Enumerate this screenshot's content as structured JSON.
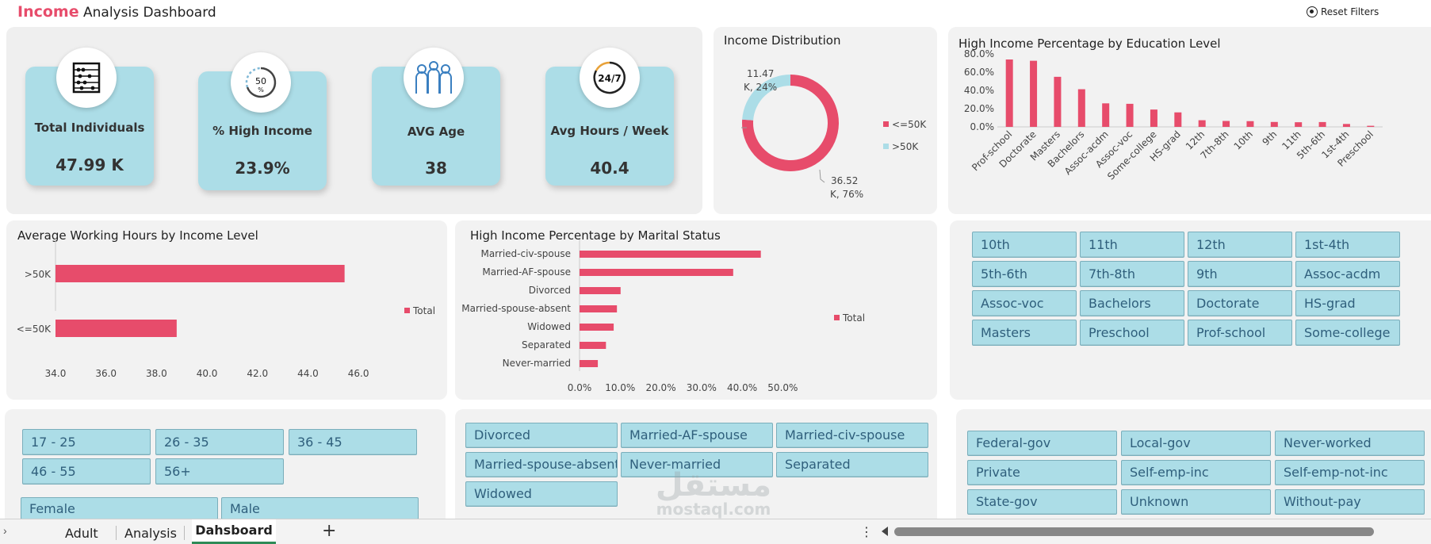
{
  "header": {
    "title_accent": "Income",
    "title_rest": " Analysis Dashboard",
    "reset_label": "Reset Filters",
    "accent_color": "#e74c6b"
  },
  "kpis": [
    {
      "label": "Total Individuals",
      "value": "47.99 K",
      "icon": "abacus-icon"
    },
    {
      "label": "% High Income",
      "value": "23.9%",
      "icon": "percent-gauge-icon"
    },
    {
      "label": "AVG Age",
      "value": "38",
      "icon": "people-icon"
    },
    {
      "label": "Avg Hours / Week",
      "value": "40.4",
      "icon": "clock-24-7-icon"
    }
  ],
  "kpi_icon_texts": {
    "percent": "50",
    "clock": "24/7"
  },
  "donut": {
    "title": "Income Distribution",
    "label_high_1": "11.47",
    "label_high_2": "K, 24%",
    "label_low_1": "36.52",
    "label_low_2": "K, 76%",
    "legend": [
      "<=50K",
      ">50K"
    ]
  },
  "charts": {
    "hours_title": "Average Working Hours by Income Level",
    "marital_title": "High Income Percentage by Marital Status",
    "education_title": "High Income Percentage by Education Level",
    "legend_total": "Total"
  },
  "chart_data": [
    {
      "type": "pie",
      "title": "Income Distribution",
      "categories": [
        "<=50K",
        ">50K"
      ],
      "values": [
        36.52,
        11.47
      ],
      "unit": "K",
      "colors": [
        "#e74c6b",
        "#acdde7"
      ]
    },
    {
      "type": "bar",
      "orientation": "vertical",
      "title": "High Income Percentage by Education Level",
      "categories": [
        "Prof-school",
        "Doctorate",
        "Masters",
        "Bachelors",
        "Assoc-acdm",
        "Assoc-voc",
        "Some-college",
        "HS-grad",
        "12th",
        "7th-8th",
        "10th",
        "9th",
        "11th",
        "5th-6th",
        "1st-4th",
        "Preschool"
      ],
      "values": [
        73.9,
        72.5,
        54.9,
        41.3,
        25.8,
        25.3,
        19.0,
        15.9,
        7.3,
        6.5,
        6.3,
        5.4,
        5.1,
        5.3,
        3.2,
        1.2
      ],
      "ylim": [
        0,
        80
      ],
      "yticks": [
        "80.0%",
        "60.0%",
        "40.0%",
        "20.0%",
        "0.0%"
      ],
      "color": "#e74c6b"
    },
    {
      "type": "bar",
      "orientation": "horizontal",
      "title": "Average Working Hours by Income Level",
      "categories": [
        ">50K",
        "<=50K"
      ],
      "values": [
        45.45,
        38.8
      ],
      "xlim": [
        34,
        47
      ],
      "xticks": [
        "34.0",
        "36.0",
        "38.0",
        "40.0",
        "42.0",
        "44.0",
        "46.0"
      ],
      "legend": [
        "Total"
      ],
      "color": "#e74c6b"
    },
    {
      "type": "bar",
      "orientation": "horizontal",
      "title": "High Income Percentage by Marital Status",
      "categories": [
        "Married-civ-spouse",
        "Married-AF-spouse",
        "Divorced",
        "Married-spouse-absent",
        "Widowed",
        "Separated",
        "Never-married"
      ],
      "values": [
        44.6,
        37.8,
        10.1,
        9.2,
        8.4,
        6.5,
        4.5
      ],
      "xlim": [
        0,
        55
      ],
      "xticks": [
        "0.0%",
        "10.0%",
        "20.0%",
        "30.0%",
        "40.0%",
        "50.0%"
      ],
      "legend": [
        "Total"
      ],
      "color": "#e74c6b"
    }
  ],
  "slicers": {
    "education": [
      "10th",
      "11th",
      "12th",
      "1st-4th",
      "5th-6th",
      "7th-8th",
      "9th",
      "Assoc-acdm",
      "Assoc-voc",
      "Bachelors",
      "Doctorate",
      "HS-grad",
      "Masters",
      "Preschool",
      "Prof-school",
      "Some-college"
    ],
    "age": [
      "17 - 25",
      "26 - 35",
      "36 - 45",
      "46 - 55",
      "56+"
    ],
    "gender": [
      "Female",
      "Male"
    ],
    "marital": [
      "Divorced",
      "Married-AF-spouse",
      "Married-civ-spouse",
      "Married-spouse-absent",
      "Never-married",
      "Separated",
      "Widowed"
    ],
    "workclass": [
      "Federal-gov",
      "Local-gov",
      "Never-worked",
      "Private",
      "Self-emp-inc",
      "Self-emp-not-inc",
      "State-gov",
      "Unknown",
      "Without-pay"
    ]
  },
  "watermark": {
    "arabic": "مستقل",
    "latin": "mostaql.com"
  },
  "sheet_tabs": [
    "Adult",
    "Analysis",
    "Dahsboard"
  ],
  "add_sheet": "+",
  "more_menu": "⋮"
}
